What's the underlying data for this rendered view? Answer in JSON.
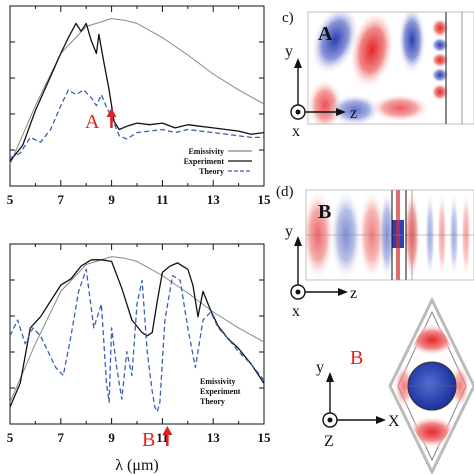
{
  "chart_data": [
    {
      "type": "line",
      "panel": "top",
      "xlim": [
        5,
        15
      ],
      "xticks": [
        "5",
        "7",
        "9",
        "11",
        "13",
        "15"
      ],
      "legend": {
        "placement": "bottom-right",
        "entries": [
          "Emissivity",
          "Experiment",
          "Theory"
        ]
      },
      "annotation": {
        "text": "A",
        "x": 8.6,
        "color": "#e02020"
      },
      "series": [
        {
          "name": "Emissivity",
          "color": "#888888",
          "style": "solid",
          "x": [
            5,
            6,
            7,
            8,
            9,
            9.5,
            10,
            11,
            12,
            13,
            14,
            15
          ],
          "y": [
            0.08,
            0.45,
            0.78,
            0.95,
            1.0,
            0.99,
            0.97,
            0.88,
            0.77,
            0.65,
            0.55,
            0.46
          ]
        },
        {
          "name": "Experiment",
          "color": "#111111",
          "style": "solid",
          "x": [
            5,
            5.5,
            6,
            6.5,
            7,
            7.3,
            7.6,
            7.8,
            8.0,
            8.2,
            8.4,
            8.5,
            8.7,
            8.9,
            9.1,
            9.3,
            9.6,
            10,
            10.5,
            11,
            11.5,
            12,
            12.5,
            13,
            13.5,
            14,
            14.5,
            15
          ],
          "y": [
            0.1,
            0.2,
            0.42,
            0.6,
            0.78,
            0.88,
            0.97,
            0.92,
            0.97,
            0.86,
            0.78,
            0.9,
            0.72,
            0.55,
            0.35,
            0.3,
            0.32,
            0.34,
            0.33,
            0.34,
            0.31,
            0.33,
            0.32,
            0.31,
            0.3,
            0.29,
            0.27,
            0.28
          ]
        },
        {
          "name": "Theory",
          "color": "#3a5fb8",
          "style": "dashed",
          "x": [
            5,
            5.4,
            5.8,
            6.2,
            6.6,
            7.0,
            7.3,
            7.6,
            7.9,
            8.2,
            8.4,
            8.6,
            8.8,
            9.0,
            9.3,
            9.6,
            10,
            10.5,
            11,
            11.5,
            12,
            12.5,
            13,
            13.5,
            14,
            14.5,
            15
          ],
          "y": [
            0.12,
            0.15,
            0.25,
            0.22,
            0.3,
            0.45,
            0.55,
            0.52,
            0.55,
            0.5,
            0.45,
            0.52,
            0.44,
            0.38,
            0.26,
            0.24,
            0.28,
            0.29,
            0.3,
            0.28,
            0.3,
            0.29,
            0.28,
            0.27,
            0.26,
            0.25,
            0.25
          ]
        }
      ]
    },
    {
      "type": "line",
      "panel": "bottom",
      "xlim": [
        5,
        15
      ],
      "xticks": [
        "5",
        "7",
        "9",
        "11",
        "13",
        "15"
      ],
      "xlabel": "λ (μm)",
      "legend": {
        "placement": "center-right",
        "entries": [
          "Emissivity",
          "Experiment",
          "Theory"
        ]
      },
      "annotation": {
        "text": "B",
        "x": 10.8,
        "color": "#e02020"
      },
      "series": [
        {
          "name": "Emissivity",
          "color": "#888888",
          "style": "solid",
          "x": [
            5,
            6,
            7,
            8,
            9,
            9.5,
            10,
            11,
            12,
            13,
            14,
            15
          ],
          "y": [
            0.08,
            0.45,
            0.78,
            0.95,
            1.0,
            0.99,
            0.97,
            0.88,
            0.77,
            0.65,
            0.55,
            0.46
          ]
        },
        {
          "name": "Experiment",
          "color": "#111111",
          "style": "solid",
          "x": [
            5,
            5.4,
            5.8,
            6.2,
            6.6,
            7.0,
            7.4,
            7.8,
            8.2,
            8.6,
            9.0,
            9.4,
            9.8,
            10.2,
            10.4,
            10.6,
            10.8,
            11.0,
            11.3,
            11.6,
            12.0,
            12.2,
            12.4,
            12.6,
            12.9,
            13.2,
            13.6,
            14,
            14.5,
            15
          ],
          "y": [
            0.05,
            0.2,
            0.55,
            0.62,
            0.72,
            0.82,
            0.86,
            0.94,
            0.98,
            0.98,
            0.97,
            0.8,
            0.6,
            0.52,
            0.5,
            0.52,
            0.72,
            0.9,
            0.94,
            0.96,
            0.92,
            0.82,
            0.62,
            0.78,
            0.66,
            0.56,
            0.48,
            0.42,
            0.32,
            0.2
          ]
        },
        {
          "name": "Theory",
          "color": "#3a5fb8",
          "style": "dashed",
          "x": [
            5,
            5.3,
            5.6,
            5.9,
            6.2,
            6.5,
            6.8,
            7.1,
            7.4,
            7.7,
            8.0,
            8.3,
            8.6,
            8.8,
            8.9,
            9.0,
            9.2,
            9.4,
            9.6,
            9.8,
            10.0,
            10.2,
            10.4,
            10.6,
            10.7,
            10.8,
            10.9,
            11.1,
            11.4,
            11.7,
            12.0,
            12.3,
            12.6,
            12.9,
            13.2,
            13.6,
            14,
            14.5,
            15
          ],
          "y": [
            0.5,
            0.6,
            0.45,
            0.55,
            0.5,
            0.4,
            0.3,
            0.25,
            0.5,
            0.78,
            0.92,
            0.55,
            0.7,
            0.2,
            0.08,
            0.55,
            0.3,
            0.1,
            0.4,
            0.25,
            0.7,
            0.85,
            0.4,
            0.15,
            0.05,
            0.02,
            0.08,
            0.6,
            0.88,
            0.85,
            0.55,
            0.3,
            0.6,
            0.65,
            0.55,
            0.48,
            0.4,
            0.32,
            0.22
          ]
        }
      ]
    }
  ],
  "panels": {
    "c": {
      "label": "c)",
      "inner": "A",
      "axes": [
        "y",
        "z",
        "x"
      ]
    },
    "d": {
      "label": "(d)",
      "inner": "B",
      "axes": [
        "y",
        "z",
        "x"
      ]
    },
    "unit": {
      "axes": [
        "y",
        "X",
        "Z"
      ],
      "label": "B"
    }
  }
}
